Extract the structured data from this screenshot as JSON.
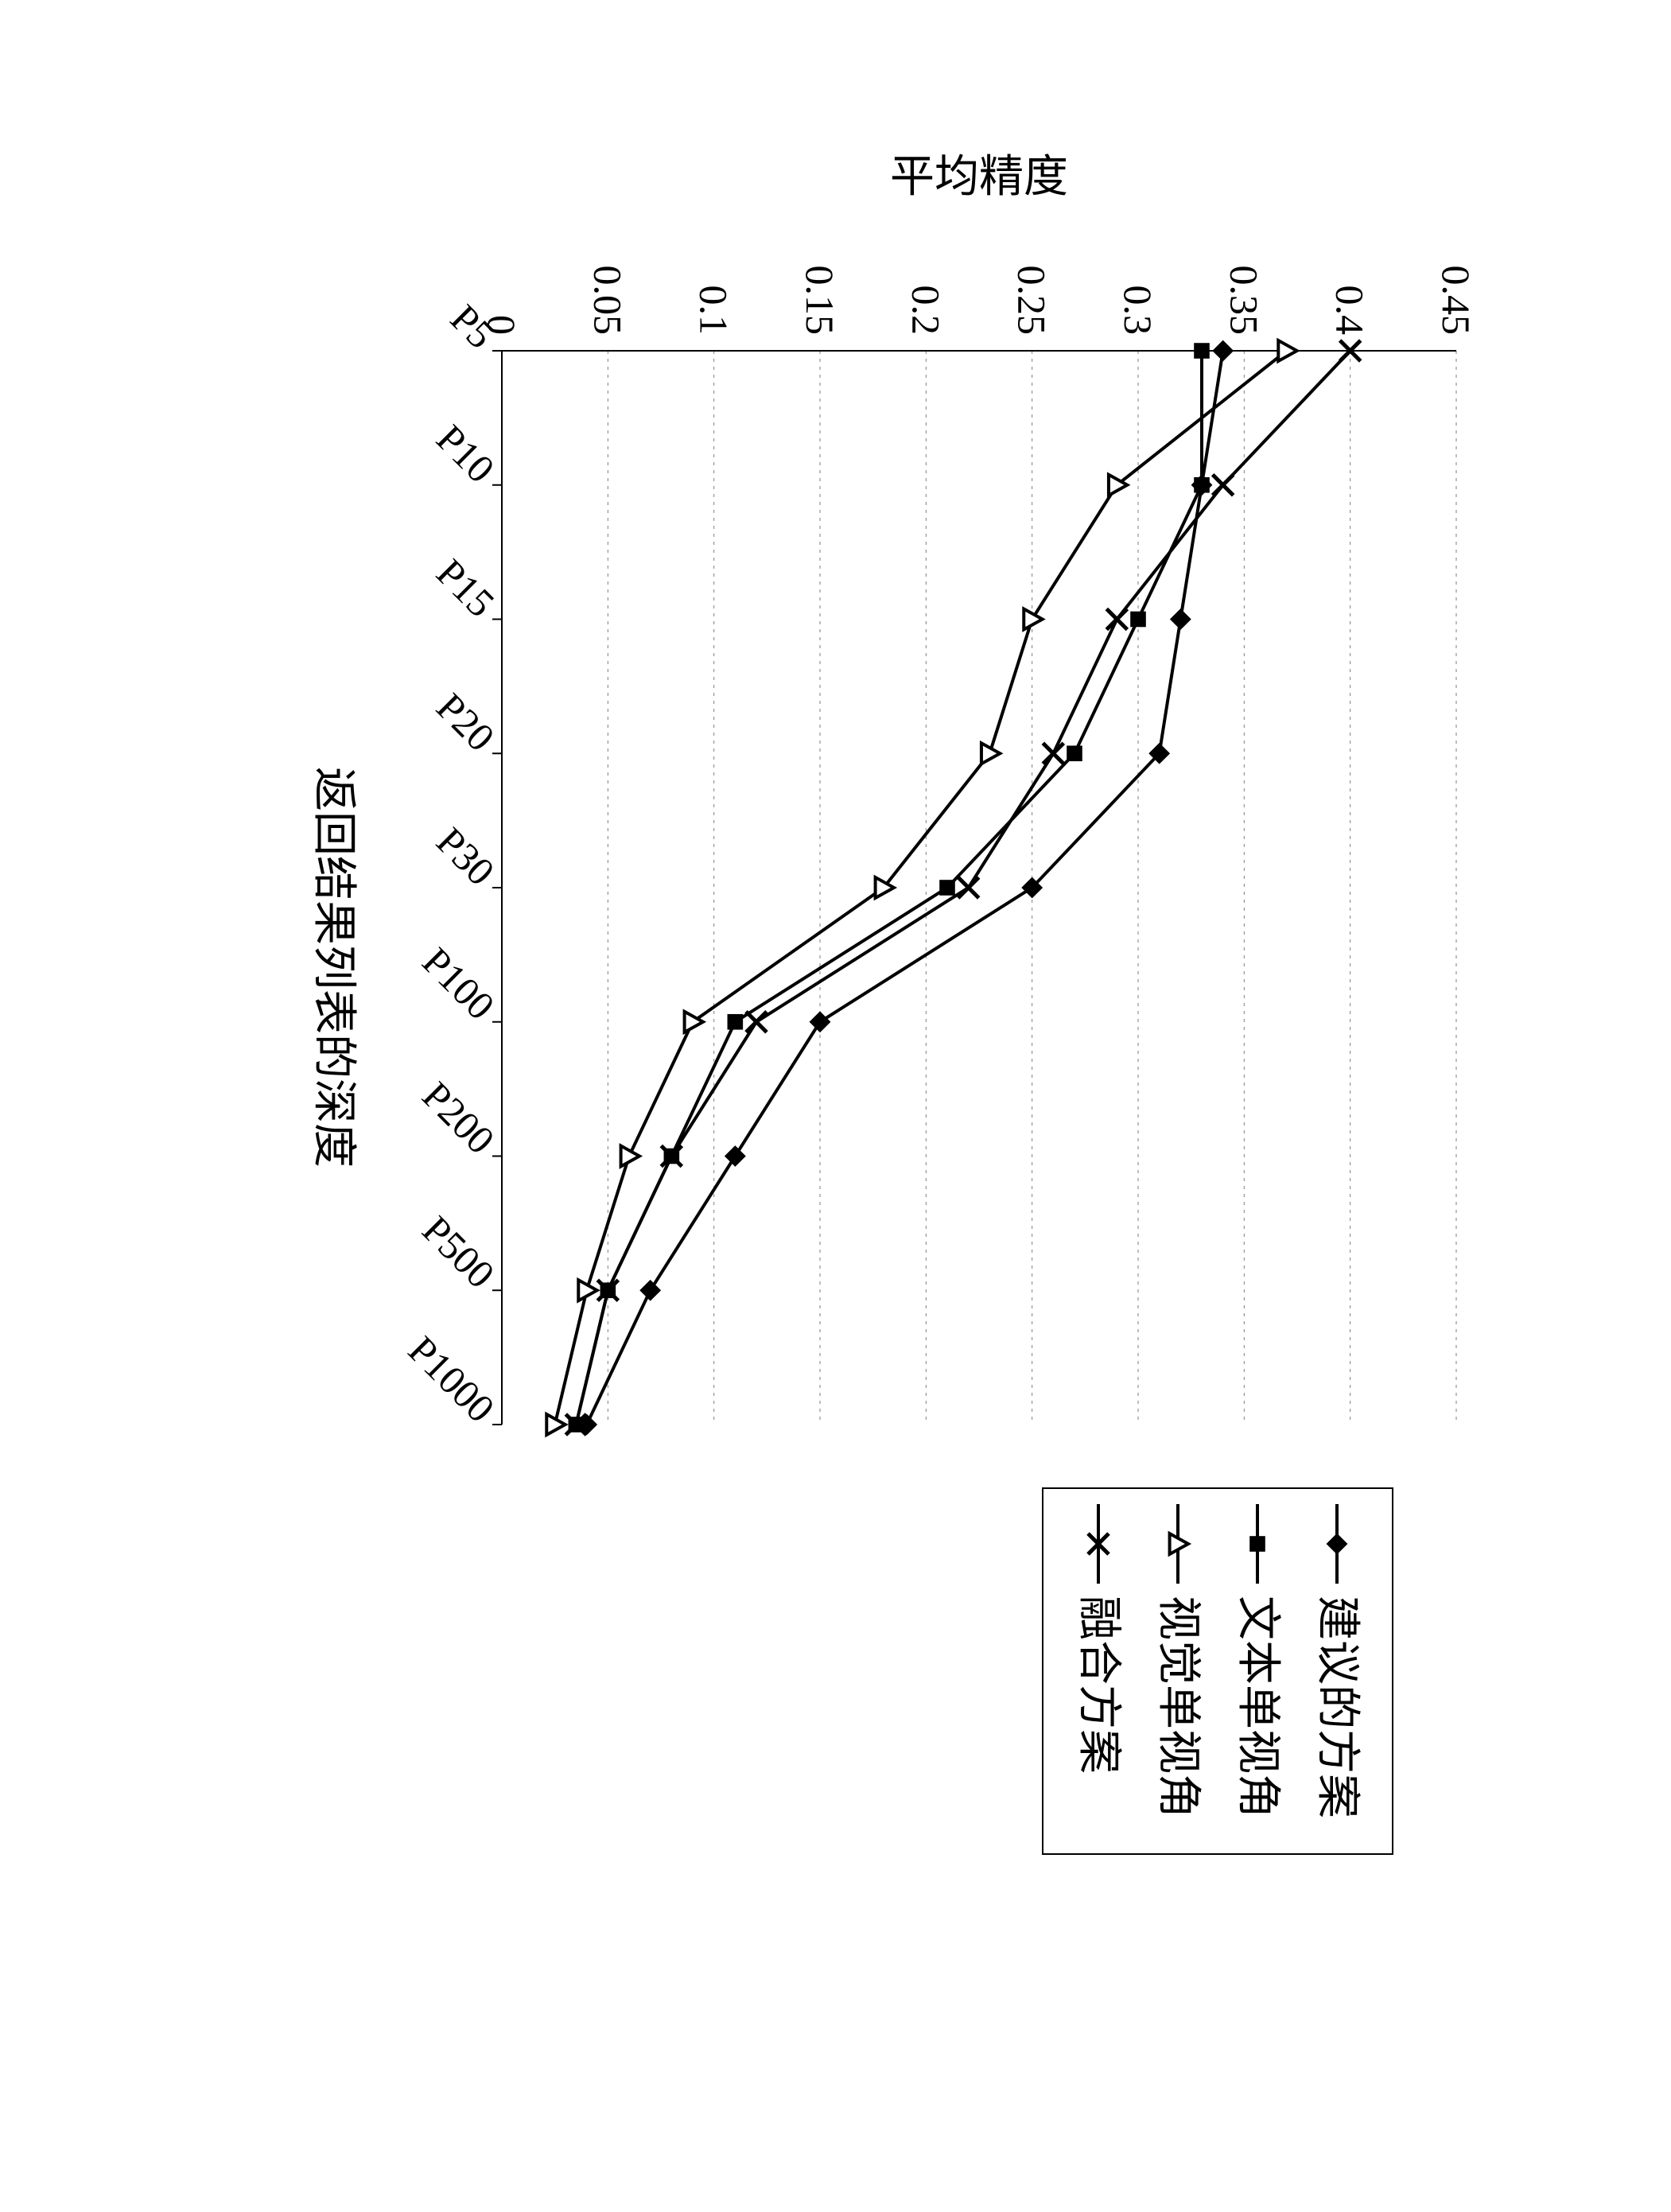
{
  "chart": {
    "type": "line",
    "orientation": "rotated-90",
    "background_color": "#ffffff",
    "line_color": "#000000",
    "grid_color": "#000000",
    "grid_style": "dashed",
    "y_axis": {
      "label": "平均精度",
      "min": 0,
      "max": 0.45,
      "ticks": [
        0,
        0.05,
        0.1,
        0.15,
        0.2,
        0.25,
        0.3,
        0.35,
        0.4,
        0.45
      ],
      "tick_labels": [
        "0",
        "0.05",
        "0.1",
        "0.15",
        "0.2",
        "0.25",
        "0.3",
        "0.35",
        "0.4",
        "0.45"
      ],
      "label_fontsize": 56,
      "tick_fontsize": 50
    },
    "x_axis": {
      "label": "返回结果列表的深度",
      "categories": [
        "P5",
        "P10",
        "P15",
        "P20",
        "P30",
        "P100",
        "P200",
        "P500",
        "P1000"
      ],
      "label_fontsize": 56,
      "tick_fontsize": 50,
      "tick_rotation": -45
    },
    "series": [
      {
        "name": "建议的方案",
        "marker": "diamond-filled",
        "marker_size": 24,
        "values": [
          0.34,
          0.33,
          0.32,
          0.31,
          0.25,
          0.15,
          0.11,
          0.07,
          0.04
        ]
      },
      {
        "name": "文本单视角",
        "marker": "square-filled",
        "marker_size": 22,
        "values": [
          0.33,
          0.33,
          0.3,
          0.27,
          0.21,
          0.11,
          0.08,
          0.05,
          0.035
        ]
      },
      {
        "name": "视觉单视角",
        "marker": "triangle-open",
        "marker_size": 26,
        "values": [
          0.37,
          0.29,
          0.25,
          0.23,
          0.18,
          0.09,
          0.06,
          0.04,
          0.025
        ]
      },
      {
        "name": "融合方案",
        "marker": "x",
        "marker_size": 26,
        "values": [
          0.4,
          0.34,
          0.29,
          0.26,
          0.22,
          0.12,
          0.08,
          0.05,
          0.035
        ]
      }
    ],
    "legend": {
      "position": "right",
      "border_color": "#000000",
      "border_width": 2
    }
  }
}
